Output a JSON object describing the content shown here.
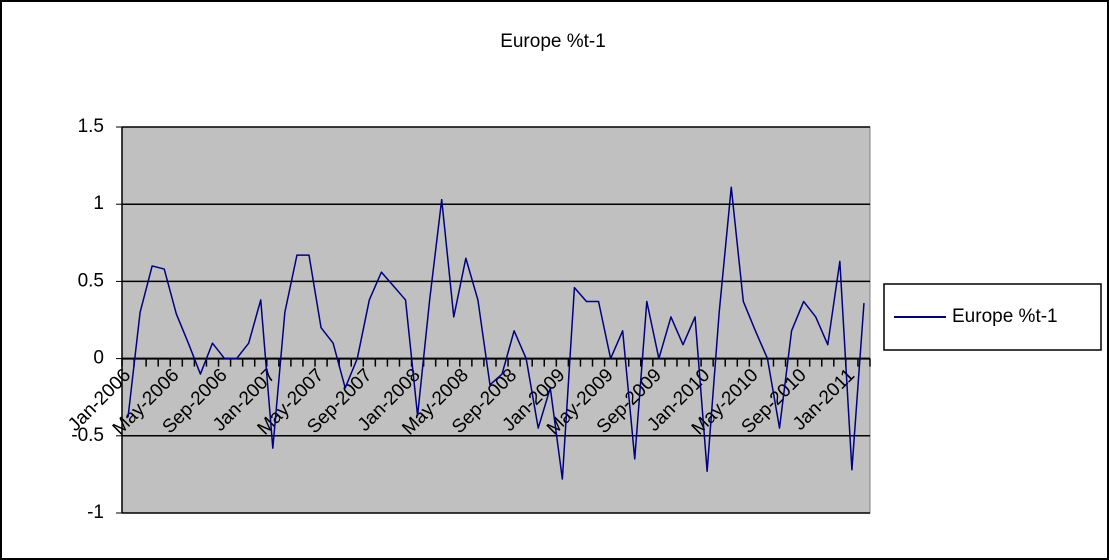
{
  "chart_data": {
    "type": "line",
    "title": "Europe %t-1",
    "categories": [
      "Jan-2006",
      null,
      null,
      null,
      "May-2006",
      null,
      null,
      null,
      "Sep-2006",
      null,
      null,
      null,
      "Jan-2007",
      null,
      null,
      null,
      "May-2007",
      null,
      null,
      null,
      "Sep-2007",
      null,
      null,
      null,
      "Jan-2008",
      null,
      null,
      null,
      "May-2008",
      null,
      null,
      null,
      "Sep-2008",
      null,
      null,
      null,
      "Jan-2009",
      null,
      null,
      null,
      "May-2009",
      null,
      null,
      null,
      "Sep-2009",
      null,
      null,
      null,
      "Jan-2010",
      null,
      null,
      null,
      "May-2010",
      null,
      null,
      null,
      "Sep-2010",
      null,
      null,
      null,
      "Jan-2011",
      null
    ],
    "series": [
      {
        "name": "Europe %t-1",
        "color": "#000080",
        "values": [
          -0.38,
          0.3,
          0.6,
          0.58,
          0.29,
          0.1,
          -0.1,
          0.1,
          0,
          0,
          0.1,
          0.38,
          -0.58,
          0.3,
          0.67,
          0.67,
          0.2,
          0.1,
          -0.19,
          0,
          0.38,
          0.56,
          0.47,
          0.38,
          -0.37,
          0.38,
          1.03,
          0.27,
          0.65,
          0.38,
          -0.17,
          -0.1,
          0.18,
          0,
          -0.45,
          -0.19,
          -0.78,
          0.46,
          0.37,
          0.37,
          0,
          0.18,
          -0.65,
          0.37,
          0,
          0.27,
          0.09,
          0.27,
          -0.73,
          0.3,
          1.11,
          0.37,
          0.18,
          0,
          -0.45,
          0.18,
          0.37,
          0.27,
          0.09,
          0.63,
          -0.72,
          0.36
        ]
      }
    ],
    "ylim": [
      -1,
      1.5
    ],
    "yticks": [
      -1,
      -0.5,
      0,
      0.5,
      1,
      1.5
    ],
    "grid": true,
    "legend": "right"
  }
}
